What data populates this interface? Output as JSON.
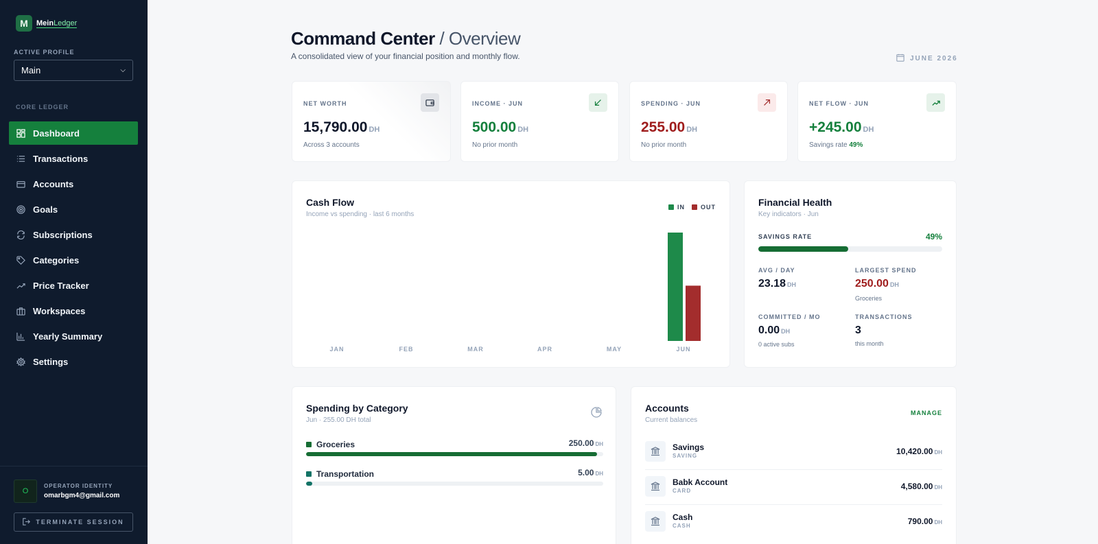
{
  "brand": {
    "logo_letter": "M",
    "name_strong": "Mein",
    "name_light": "Ledger"
  },
  "sidebar": {
    "profile_label": "ACTIVE PROFILE",
    "profile_value": "Main",
    "section_label": "CORE LEDGER",
    "items": [
      {
        "label": "Dashboard",
        "icon": "grid-icon",
        "active": true
      },
      {
        "label": "Transactions",
        "icon": "list-icon",
        "active": false
      },
      {
        "label": "Accounts",
        "icon": "card-icon",
        "active": false
      },
      {
        "label": "Goals",
        "icon": "target-icon",
        "active": false
      },
      {
        "label": "Subscriptions",
        "icon": "refresh-icon",
        "active": false
      },
      {
        "label": "Categories",
        "icon": "tag-icon",
        "active": false
      },
      {
        "label": "Price Tracker",
        "icon": "trend-icon",
        "active": false
      },
      {
        "label": "Workspaces",
        "icon": "briefcase-icon",
        "active": false
      },
      {
        "label": "Yearly Summary",
        "icon": "bar-chart-icon",
        "active": false
      },
      {
        "label": "Settings",
        "icon": "gear-icon",
        "active": false
      }
    ],
    "operator_label": "OPERATOR IDENTITY",
    "operator_initial": "O",
    "operator_email": "omarbgm4@gmail.com",
    "terminate_label": "TERMINATE SESSION"
  },
  "header": {
    "title": "Command Center",
    "title_sub": "/ Overview",
    "description": "A consolidated view of your financial position and monthly flow.",
    "date": "JUNE 2026"
  },
  "stats": [
    {
      "label": "NET WORTH",
      "value": "15,790.00",
      "unit": "DH",
      "sub": "Across 3 accounts",
      "sub_strong": "",
      "tone": "neutral",
      "icon": "wallet-icon"
    },
    {
      "label": "INCOME · JUN",
      "value": "500.00",
      "unit": "DH",
      "sub": "No prior month",
      "sub_strong": "",
      "tone": "green",
      "icon": "arrow-down-left-icon"
    },
    {
      "label": "SPENDING · JUN",
      "value": "255.00",
      "unit": "DH",
      "sub": "No prior month",
      "sub_strong": "",
      "tone": "red",
      "icon": "arrow-up-right-icon"
    },
    {
      "label": "NET FLOW · JUN",
      "value": "+245.00",
      "unit": "DH",
      "sub": "Savings rate",
      "sub_strong": "49%",
      "tone": "green",
      "icon": "trend-up-icon"
    }
  ],
  "cashflow": {
    "title": "Cash Flow",
    "subtitle": "Income vs spending · last 6 months",
    "legend_in": "IN",
    "legend_out": "OUT"
  },
  "chart_data": {
    "type": "bar",
    "categories": [
      "JAN",
      "FEB",
      "MAR",
      "APR",
      "MAY",
      "JUN"
    ],
    "series": [
      {
        "name": "IN",
        "values": [
          0,
          0,
          0,
          0,
          0,
          500
        ],
        "color": "#1e8a4a"
      },
      {
        "name": "OUT",
        "values": [
          0,
          0,
          0,
          0,
          0,
          255
        ],
        "color": "#a32d2d"
      }
    ],
    "ylim": [
      0,
      500
    ],
    "grid": false,
    "legend": "top-right"
  },
  "health": {
    "title": "Financial Health",
    "subtitle": "Key indicators · Jun",
    "savings_label": "SAVINGS RATE",
    "savings_value": "49%",
    "savings_fraction": 0.49,
    "avg_label": "AVG / DAY",
    "avg_value": "23.18",
    "largest_label": "LARGEST SPEND",
    "largest_value": "250.00",
    "largest_sub": "Groceries",
    "committed_label": "COMMITTED / MO",
    "committed_value": "0.00",
    "committed_sub": "0 active subs",
    "tx_label": "TRANSACTIONS",
    "tx_value": "3",
    "tx_sub": "this month",
    "unit": "DH"
  },
  "spending": {
    "title": "Spending by Category",
    "subtitle": "Jun · 255.00 DH total",
    "categories": [
      {
        "name": "Groceries",
        "amount": "250.00",
        "unit": "DH",
        "fraction": 0.98,
        "color": "#166d34"
      },
      {
        "name": "Transportation",
        "amount": "5.00",
        "unit": "DH",
        "fraction": 0.02,
        "color": "#137366"
      }
    ]
  },
  "accounts": {
    "title": "Accounts",
    "subtitle": "Current balances",
    "manage_label": "MANAGE",
    "items": [
      {
        "name": "Savings",
        "type": "SAVING",
        "amount": "10,420.00",
        "unit": "DH"
      },
      {
        "name": "Babk Account",
        "type": "CARD",
        "amount": "4,580.00",
        "unit": "DH"
      },
      {
        "name": "Cash",
        "type": "CASH",
        "amount": "790.00",
        "unit": "DH"
      }
    ]
  }
}
